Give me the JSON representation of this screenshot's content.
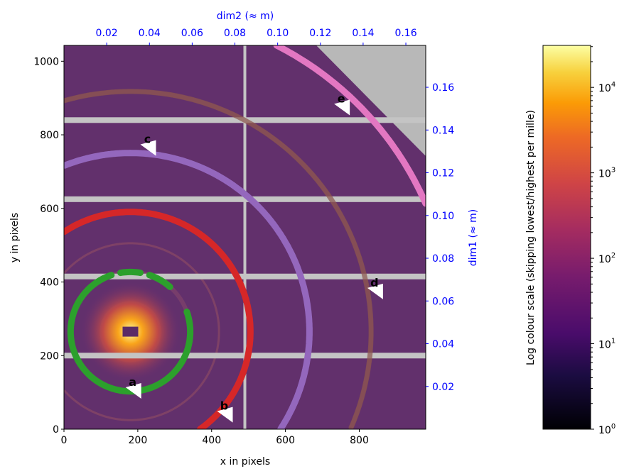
{
  "chart_data": {
    "type": "heatmap",
    "xlabel": "x in pixels",
    "ylabel": "y in pixels",
    "xlim": [
      0,
      980
    ],
    "ylim": [
      0,
      1043
    ],
    "xticks": [
      "0",
      "200",
      "400",
      "600",
      "800"
    ],
    "yticks": [
      "0",
      "200",
      "400",
      "600",
      "800",
      "1000"
    ],
    "top_axis": {
      "label": "dim2 (≈ m)",
      "color": "#0000ff",
      "range": [
        0,
        0.1693
      ],
      "ticks": [
        "0.02",
        "0.04",
        "0.06",
        "0.08",
        "0.10",
        "0.12",
        "0.14",
        "0.16"
      ]
    },
    "right_axis": {
      "label": "dim1 (≈ m)",
      "color": "#0000ff",
      "range": [
        0,
        0.1796
      ],
      "ticks": [
        "0.02",
        "0.04",
        "0.06",
        "0.08",
        "0.10",
        "0.12",
        "0.14",
        "0.16"
      ]
    },
    "colorbar": {
      "label": "Log colour scale (skipping lowest/highest per mille)",
      "colormap": "inferno",
      "scale": "log",
      "range": [
        1,
        31000
      ],
      "ticks": [
        {
          "base": "10",
          "exp": "0",
          "value": 1
        },
        {
          "base": "10",
          "exp": "1",
          "value": 10
        },
        {
          "base": "10",
          "exp": "2",
          "value": 100
        },
        {
          "base": "10",
          "exp": "3",
          "value": 1000
        },
        {
          "base": "10",
          "exp": "4",
          "value": 10000
        }
      ]
    },
    "beam_center": [
      180,
      265
    ],
    "rings": [
      {
        "color": "#2ca02c",
        "radius": 162
      },
      {
        "color": "#d62728",
        "radius": 325
      },
      {
        "color": "#9467bd",
        "radius": 485
      },
      {
        "color": "#8c564b",
        "radius": 652
      },
      {
        "color": "#e377c2",
        "radius": 872
      }
    ],
    "annotations": [
      {
        "text": "a",
        "x": 190,
        "y": 110
      },
      {
        "text": "b",
        "x": 438,
        "y": 45
      },
      {
        "text": "c",
        "x": 230,
        "y": 770
      },
      {
        "text": "d",
        "x": 845,
        "y": 380
      },
      {
        "text": "e",
        "x": 755,
        "y": 880
      }
    ],
    "gap_rows": [
      200,
      415,
      625,
      840
    ],
    "gap_cols": [
      490
    ]
  }
}
